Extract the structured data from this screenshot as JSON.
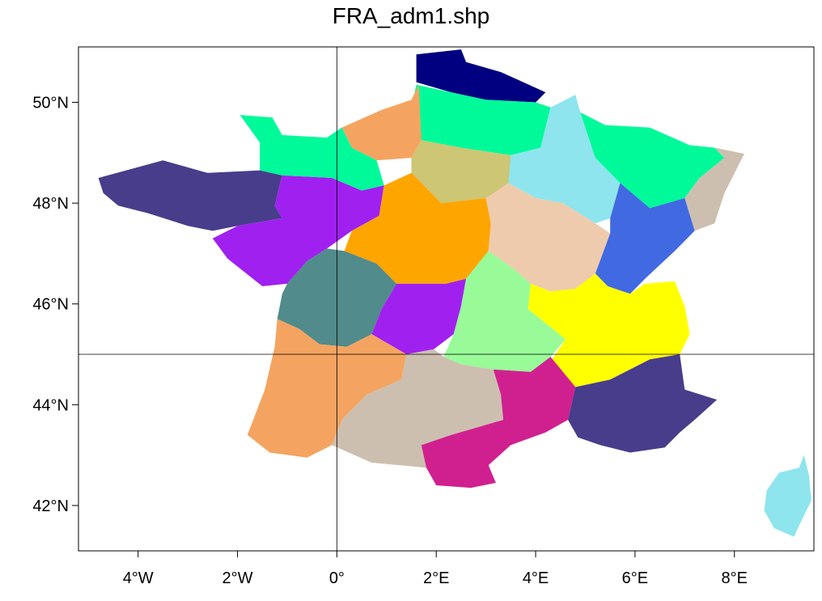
{
  "title": "FRA_adm1.shp",
  "axes": {
    "x_ticks": [
      {
        "value": -4,
        "label": "4°W"
      },
      {
        "value": -2,
        "label": "2°W"
      },
      {
        "value": 0,
        "label": "0°"
      },
      {
        "value": 2,
        "label": "2°E"
      },
      {
        "value": 4,
        "label": "4°E"
      },
      {
        "value": 6,
        "label": "6°E"
      },
      {
        "value": 8,
        "label": "8°E"
      }
    ],
    "y_ticks": [
      {
        "value": 42,
        "label": "42°N"
      },
      {
        "value": 44,
        "label": "44°N"
      },
      {
        "value": 46,
        "label": "46°N"
      },
      {
        "value": 48,
        "label": "48°N"
      },
      {
        "value": 50,
        "label": "50°N"
      }
    ],
    "xlim": [
      -5.2,
      9.6
    ],
    "ylim": [
      41.1,
      51.1
    ],
    "reference_lines": {
      "longitude": 0,
      "latitude": 45
    }
  },
  "regions": [
    {
      "id": "nord-pas-de-calais",
      "color": "#000080",
      "points": [
        [
          1.6,
          50.95
        ],
        [
          2.5,
          51.05
        ],
        [
          2.6,
          50.8
        ],
        [
          3.3,
          50.6
        ],
        [
          4.2,
          50.2
        ],
        [
          4.0,
          50.0
        ],
        [
          3.0,
          50.05
        ],
        [
          2.3,
          50.2
        ],
        [
          1.6,
          50.4
        ]
      ]
    },
    {
      "id": "picardie",
      "color": "#00FA9A",
      "points": [
        [
          1.6,
          50.35
        ],
        [
          2.3,
          50.2
        ],
        [
          3.0,
          50.05
        ],
        [
          4.0,
          50.0
        ],
        [
          4.3,
          49.9
        ],
        [
          4.1,
          49.1
        ],
        [
          3.5,
          48.95
        ],
        [
          2.5,
          49.1
        ],
        [
          1.7,
          49.25
        ],
        [
          1.45,
          49.65
        ]
      ]
    },
    {
      "id": "haute-normandie",
      "color": "#F4A460",
      "points": [
        [
          0.1,
          49.5
        ],
        [
          0.9,
          49.85
        ],
        [
          1.5,
          50.05
        ],
        [
          1.65,
          50.35
        ],
        [
          1.7,
          49.25
        ],
        [
          1.5,
          48.9
        ],
        [
          0.8,
          48.85
        ],
        [
          0.3,
          49.1
        ]
      ]
    },
    {
      "id": "basse-normandie",
      "color": "#00FA9A",
      "points": [
        [
          -1.95,
          49.75
        ],
        [
          -1.3,
          49.7
        ],
        [
          -1.1,
          49.35
        ],
        [
          -0.2,
          49.3
        ],
        [
          0.1,
          49.5
        ],
        [
          0.3,
          49.1
        ],
        [
          0.8,
          48.85
        ],
        [
          0.95,
          48.35
        ],
        [
          0.5,
          48.25
        ],
        [
          -0.1,
          48.5
        ],
        [
          -1.1,
          48.55
        ],
        [
          -1.55,
          48.65
        ],
        [
          -1.55,
          49.2
        ]
      ]
    },
    {
      "id": "ile-de-france",
      "color": "#CDC674",
      "points": [
        [
          1.5,
          48.9
        ],
        [
          1.7,
          49.25
        ],
        [
          2.5,
          49.1
        ],
        [
          3.5,
          48.95
        ],
        [
          3.55,
          48.4
        ],
        [
          3.0,
          48.1
        ],
        [
          2.1,
          48.0
        ],
        [
          1.5,
          48.6
        ]
      ]
    },
    {
      "id": "champagne-ardenne",
      "color": "#8EE5EE",
      "points": [
        [
          4.3,
          49.9
        ],
        [
          4.8,
          50.15
        ],
        [
          4.9,
          49.8
        ],
        [
          5.4,
          49.55
        ],
        [
          5.2,
          48.9
        ],
        [
          5.7,
          48.4
        ],
        [
          5.5,
          47.7
        ],
        [
          5.2,
          47.6
        ],
        [
          4.55,
          48.0
        ],
        [
          4.0,
          48.1
        ],
        [
          3.45,
          48.4
        ],
        [
          3.5,
          48.95
        ],
        [
          4.1,
          49.1
        ]
      ]
    },
    {
      "id": "lorraine",
      "color": "#00FA9A",
      "points": [
        [
          4.9,
          49.8
        ],
        [
          5.4,
          49.55
        ],
        [
          6.3,
          49.5
        ],
        [
          7.1,
          49.15
        ],
        [
          7.6,
          49.1
        ],
        [
          7.8,
          48.9
        ],
        [
          7.3,
          48.5
        ],
        [
          7.0,
          48.1
        ],
        [
          6.3,
          47.9
        ],
        [
          5.7,
          48.4
        ],
        [
          5.2,
          48.9
        ]
      ]
    },
    {
      "id": "alsace",
      "color": "#CDBFB0",
      "points": [
        [
          7.6,
          49.1
        ],
        [
          8.2,
          48.98
        ],
        [
          7.8,
          48.2
        ],
        [
          7.6,
          47.6
        ],
        [
          7.2,
          47.45
        ],
        [
          7.0,
          48.1
        ],
        [
          7.3,
          48.5
        ],
        [
          7.8,
          48.9
        ]
      ]
    },
    {
      "id": "bretagne",
      "color": "#483D8B",
      "points": [
        [
          -4.8,
          48.5
        ],
        [
          -3.5,
          48.85
        ],
        [
          -2.6,
          48.6
        ],
        [
          -1.55,
          48.65
        ],
        [
          -1.1,
          48.55
        ],
        [
          -1.25,
          47.95
        ],
        [
          -1.1,
          47.7
        ],
        [
          -2.0,
          47.55
        ],
        [
          -2.5,
          47.45
        ],
        [
          -3.0,
          47.55
        ],
        [
          -3.8,
          47.8
        ],
        [
          -4.4,
          47.95
        ],
        [
          -4.7,
          48.2
        ]
      ]
    },
    {
      "id": "pays-de-la-loire",
      "color": "#A020F0",
      "points": [
        [
          -1.1,
          48.55
        ],
        [
          -0.1,
          48.5
        ],
        [
          0.5,
          48.25
        ],
        [
          0.95,
          48.35
        ],
        [
          0.85,
          47.75
        ],
        [
          0.3,
          47.45
        ],
        [
          -0.2,
          47.1
        ],
        [
          -0.6,
          46.85
        ],
        [
          -1.0,
          46.4
        ],
        [
          -1.5,
          46.35
        ],
        [
          -2.2,
          46.9
        ],
        [
          -2.5,
          47.3
        ],
        [
          -2.0,
          47.55
        ],
        [
          -1.1,
          47.7
        ],
        [
          -1.25,
          47.95
        ]
      ]
    },
    {
      "id": "centre",
      "color": "#FFA500",
      "points": [
        [
          0.95,
          48.35
        ],
        [
          1.5,
          48.6
        ],
        [
          2.1,
          48.0
        ],
        [
          3.0,
          48.1
        ],
        [
          3.1,
          47.6
        ],
        [
          3.05,
          47.05
        ],
        [
          2.6,
          46.5
        ],
        [
          2.2,
          46.4
        ],
        [
          1.2,
          46.4
        ],
        [
          0.8,
          46.8
        ],
        [
          0.15,
          47.05
        ],
        [
          0.3,
          47.45
        ],
        [
          0.85,
          47.75
        ]
      ]
    },
    {
      "id": "bourgogne",
      "color": "#EECBAD",
      "points": [
        [
          3.0,
          48.1
        ],
        [
          3.45,
          48.4
        ],
        [
          4.0,
          48.1
        ],
        [
          4.55,
          48.0
        ],
        [
          5.2,
          47.6
        ],
        [
          5.5,
          47.4
        ],
        [
          5.2,
          46.6
        ],
        [
          4.8,
          46.3
        ],
        [
          4.3,
          46.25
        ],
        [
          3.9,
          46.4
        ],
        [
          3.55,
          46.7
        ],
        [
          3.05,
          47.05
        ],
        [
          3.1,
          47.6
        ]
      ]
    },
    {
      "id": "franche-comte",
      "color": "#4169E1",
      "points": [
        [
          5.5,
          47.7
        ],
        [
          5.7,
          48.4
        ],
        [
          6.3,
          47.9
        ],
        [
          7.0,
          48.1
        ],
        [
          7.2,
          47.45
        ],
        [
          6.8,
          47.05
        ],
        [
          6.2,
          46.5
        ],
        [
          5.9,
          46.2
        ],
        [
          5.45,
          46.35
        ],
        [
          5.2,
          46.6
        ],
        [
          5.5,
          47.4
        ]
      ]
    },
    {
      "id": "poitou-charentes",
      "color": "#528B8B",
      "points": [
        [
          -0.6,
          46.85
        ],
        [
          -0.2,
          47.1
        ],
        [
          0.15,
          47.05
        ],
        [
          0.8,
          46.8
        ],
        [
          1.2,
          46.4
        ],
        [
          0.9,
          45.9
        ],
        [
          0.7,
          45.4
        ],
        [
          0.2,
          45.15
        ],
        [
          -0.35,
          45.2
        ],
        [
          -0.75,
          45.5
        ],
        [
          -1.2,
          45.7
        ],
        [
          -1.1,
          46.2
        ],
        [
          -1.0,
          46.4
        ]
      ]
    },
    {
      "id": "limousin",
      "color": "#A020F0",
      "points": [
        [
          1.2,
          46.4
        ],
        [
          2.2,
          46.4
        ],
        [
          2.6,
          46.5
        ],
        [
          2.5,
          45.95
        ],
        [
          2.35,
          45.4
        ],
        [
          1.95,
          45.1
        ],
        [
          1.4,
          45.0
        ],
        [
          0.7,
          45.4
        ],
        [
          0.9,
          45.9
        ]
      ]
    },
    {
      "id": "auvergne",
      "color": "#98FB98",
      "points": [
        [
          2.6,
          46.5
        ],
        [
          3.05,
          47.05
        ],
        [
          3.55,
          46.7
        ],
        [
          3.9,
          46.4
        ],
        [
          3.85,
          45.9
        ],
        [
          4.6,
          45.3
        ],
        [
          4.3,
          44.95
        ],
        [
          3.9,
          44.65
        ],
        [
          3.15,
          44.7
        ],
        [
          2.5,
          44.8
        ],
        [
          2.15,
          44.95
        ],
        [
          2.35,
          45.4
        ],
        [
          2.5,
          45.95
        ]
      ]
    },
    {
      "id": "rhone-alpes",
      "color": "#FFFF00",
      "points": [
        [
          3.9,
          46.4
        ],
        [
          4.3,
          46.25
        ],
        [
          4.8,
          46.3
        ],
        [
          5.2,
          46.6
        ],
        [
          5.45,
          46.35
        ],
        [
          5.9,
          46.2
        ],
        [
          6.2,
          46.4
        ],
        [
          6.8,
          46.45
        ],
        [
          7.0,
          45.95
        ],
        [
          7.1,
          45.4
        ],
        [
          6.9,
          45.0
        ],
        [
          6.3,
          44.9
        ],
        [
          5.5,
          44.5
        ],
        [
          4.8,
          44.35
        ],
        [
          4.3,
          44.85
        ],
        [
          4.6,
          45.3
        ],
        [
          3.85,
          45.9
        ]
      ]
    },
    {
      "id": "aquitaine",
      "color": "#F4A460",
      "points": [
        [
          -1.2,
          45.7
        ],
        [
          -0.75,
          45.5
        ],
        [
          -0.35,
          45.2
        ],
        [
          0.2,
          45.15
        ],
        [
          0.7,
          45.4
        ],
        [
          1.4,
          45.0
        ],
        [
          1.3,
          44.5
        ],
        [
          0.6,
          44.2
        ],
        [
          0.1,
          43.7
        ],
        [
          -0.1,
          43.2
        ],
        [
          -0.6,
          42.95
        ],
        [
          -1.35,
          43.05
        ],
        [
          -1.8,
          43.4
        ],
        [
          -1.45,
          44.3
        ],
        [
          -1.25,
          45.15
        ]
      ]
    },
    {
      "id": "midi-pyrenees",
      "color": "#CDBFB0",
      "points": [
        [
          1.4,
          45.0
        ],
        [
          1.95,
          45.1
        ],
        [
          2.15,
          44.95
        ],
        [
          2.5,
          44.8
        ],
        [
          3.15,
          44.7
        ],
        [
          3.3,
          44.2
        ],
        [
          3.35,
          43.7
        ],
        [
          2.3,
          43.4
        ],
        [
          1.7,
          43.2
        ],
        [
          1.8,
          42.75
        ],
        [
          0.7,
          42.85
        ],
        [
          -0.1,
          43.2
        ],
        [
          0.1,
          43.7
        ],
        [
          0.6,
          44.2
        ],
        [
          1.3,
          44.5
        ]
      ]
    },
    {
      "id": "languedoc-roussillon",
      "color": "#D02090",
      "points": [
        [
          3.15,
          44.7
        ],
        [
          3.9,
          44.65
        ],
        [
          4.3,
          44.95
        ],
        [
          4.8,
          44.35
        ],
        [
          4.65,
          43.7
        ],
        [
          4.2,
          43.45
        ],
        [
          3.5,
          43.2
        ],
        [
          3.05,
          42.8
        ],
        [
          3.2,
          42.45
        ],
        [
          2.7,
          42.35
        ],
        [
          2.0,
          42.4
        ],
        [
          1.8,
          42.75
        ],
        [
          1.7,
          43.2
        ],
        [
          2.3,
          43.4
        ],
        [
          3.35,
          43.7
        ],
        [
          3.3,
          44.2
        ]
      ]
    },
    {
      "id": "provence-alpes-cote-d-azur",
      "color": "#483D8B",
      "points": [
        [
          4.8,
          44.35
        ],
        [
          5.5,
          44.5
        ],
        [
          6.3,
          44.9
        ],
        [
          6.9,
          45.0
        ],
        [
          7.0,
          44.3
        ],
        [
          7.65,
          44.1
        ],
        [
          7.2,
          43.7
        ],
        [
          6.9,
          43.45
        ],
        [
          6.6,
          43.15
        ],
        [
          5.9,
          43.05
        ],
        [
          5.3,
          43.2
        ],
        [
          4.85,
          43.35
        ],
        [
          4.65,
          43.7
        ]
      ]
    },
    {
      "id": "corse",
      "color": "#8EE5EE",
      "points": [
        [
          9.4,
          43.0
        ],
        [
          9.5,
          42.6
        ],
        [
          9.55,
          42.1
        ],
        [
          9.3,
          41.6
        ],
        [
          9.2,
          41.38
        ],
        [
          8.8,
          41.55
        ],
        [
          8.6,
          41.9
        ],
        [
          8.65,
          42.3
        ],
        [
          8.9,
          42.65
        ],
        [
          9.3,
          42.75
        ]
      ]
    }
  ]
}
